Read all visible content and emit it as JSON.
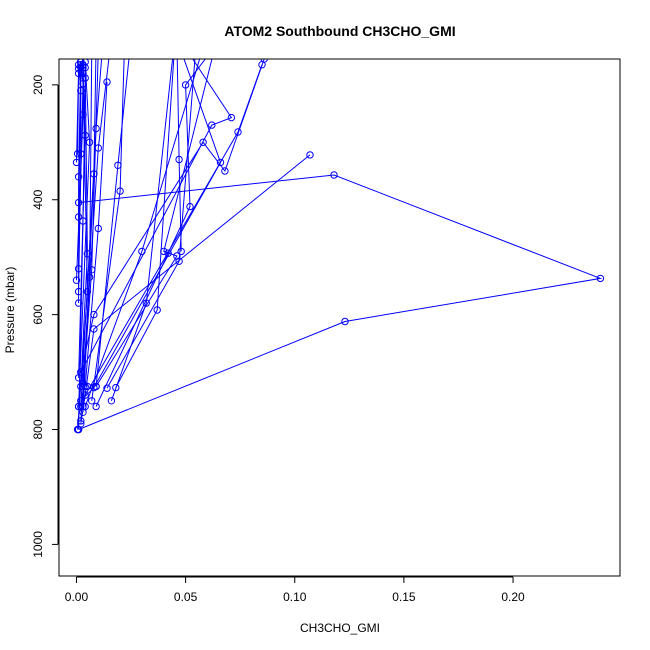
{
  "chart_data": {
    "type": "line",
    "title": "ATOM2 Southbound CH3CHO_GMI",
    "xlabel": "CH3CHO_GMI",
    "ylabel": "Pressure (mbar)",
    "xlim": [
      -0.008,
      0.249
    ],
    "ylim": [
      1055,
      155
    ],
    "y_reversed": true,
    "grid": false,
    "color": "#0000ff",
    "x_ticks": [
      0.0,
      0.05,
      0.1,
      0.15,
      0.2
    ],
    "x_tick_labels": [
      "0.00",
      "0.05",
      "0.10",
      "0.15",
      "0.20"
    ],
    "y_ticks": [
      200,
      400,
      600,
      800,
      1000
    ],
    "y_tick_labels": [
      "200",
      "400",
      "600",
      "800",
      "1000"
    ],
    "series": [
      {
        "x": [
          0.001,
          0.123,
          0.24,
          0.118,
          0.001
        ],
        "y": [
          800,
          612,
          537,
          357,
          405
        ]
      },
      {
        "x": [
          0.107,
          0.008,
          0.004,
          0.002
        ],
        "y": [
          322,
          625,
          740,
          790
        ]
      },
      {
        "x": [
          0.002,
          0.008,
          0.066,
          0.046,
          0.047,
          0.048
        ],
        "y": [
          750,
          727,
          335,
          120,
          330,
          490
        ]
      },
      {
        "x": [
          0.005,
          0.002,
          0.062,
          0.071,
          0.042
        ],
        "y": [
          725,
          700,
          270,
          257,
          90
        ]
      },
      {
        "x": [
          0.002,
          0.008,
          0.058,
          0.068,
          0.086
        ],
        "y": [
          700,
          600,
          300,
          350,
          155
        ]
      },
      {
        "x": [
          0.001,
          0.074,
          0.085
        ],
        "y": [
          760,
          282,
          165
        ]
      },
      {
        "x": [
          0.004,
          0.03,
          0.06
        ],
        "y": [
          760,
          490,
          110
        ]
      },
      {
        "x": [
          0.009,
          0.042,
          0.052,
          0.05,
          0.07
        ],
        "y": [
          760,
          493,
          412,
          200,
          100
        ]
      },
      {
        "x": [
          0.009,
          0.046,
          0.04,
          0.065
        ],
        "y": [
          725,
          498,
          490,
          110
        ]
      },
      {
        "x": [
          0.014,
          0.047,
          0.055
        ],
        "y": [
          728,
          507,
          120
        ]
      },
      {
        "x": [
          0.016,
          0.032,
          0.045
        ],
        "y": [
          750,
          580,
          120
        ]
      },
      {
        "x": [
          0.018,
          0.037,
          0.045
        ],
        "y": [
          727,
          592,
          130
        ]
      },
      {
        "x": [
          0.007,
          0.02,
          0.022
        ],
        "y": [
          750,
          385,
          130
        ]
      },
      {
        "x": [
          0.009,
          0.019,
          0.025
        ],
        "y": [
          725,
          340,
          120
        ]
      },
      {
        "x": [
          0.004,
          0.01,
          0.014
        ],
        "y": [
          725,
          450,
          195
        ]
      },
      {
        "x": [
          0.002,
          0.009,
          0.012
        ],
        "y": [
          760,
          276,
          130
        ]
      },
      {
        "x": [
          0.003,
          0.01,
          0.015
        ],
        "y": [
          720,
          310,
          150
        ]
      },
      {
        "x": [
          0.003,
          0.008,
          0.009
        ],
        "y": [
          760,
          355,
          130
        ]
      },
      {
        "x": [
          0.002,
          0.007,
          0.01
        ],
        "y": [
          785,
          522,
          140
        ]
      },
      {
        "x": [
          0.003,
          0.006,
          0.007
        ],
        "y": [
          770,
          535,
          150
        ]
      },
      {
        "x": [
          0.002,
          0.005,
          0.004
        ],
        "y": [
          725,
          494,
          170
        ]
      },
      {
        "x": [
          0.0005,
          0.005,
          0.003
        ],
        "y": [
          800,
          560,
          180
        ]
      },
      {
        "x": [
          0.001,
          0.006,
          0.004
        ],
        "y": [
          760,
          300,
          160
        ]
      },
      {
        "x": [
          0.001,
          0.004,
          0.003
        ],
        "y": [
          710,
          288,
          170
        ]
      },
      {
        "x": [
          0.001,
          0.003,
          0.004,
          0.002
        ],
        "y": [
          800,
          437,
          188,
          160
        ]
      },
      {
        "x": [
          0.0,
          0.003,
          0.003
        ],
        "y": [
          540,
          252,
          165
        ]
      },
      {
        "x": [
          0.001,
          0.002,
          0.002
        ],
        "y": [
          560,
          320,
          170
        ]
      },
      {
        "x": [
          0.001,
          0.001,
          0.002
        ],
        "y": [
          580,
          360,
          160
        ]
      },
      {
        "x": [
          0.001,
          0.003,
          0.002
        ],
        "y": [
          520,
          198,
          160
        ]
      },
      {
        "x": [
          0.001,
          0.002,
          0.001
        ],
        "y": [
          430,
          210,
          165
        ]
      },
      {
        "x": [
          0.0,
          0.001,
          0.002
        ],
        "y": [
          335,
          172,
          160
        ]
      },
      {
        "x": [
          0.0005,
          0.001,
          0.002
        ],
        "y": [
          320,
          180,
          165
        ]
      }
    ]
  }
}
